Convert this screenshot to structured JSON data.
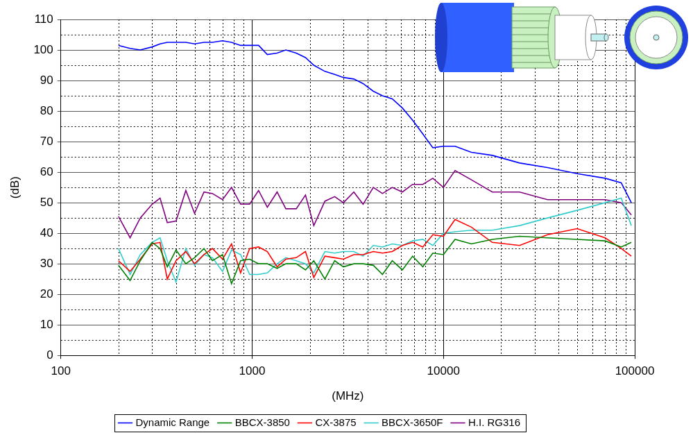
{
  "chart_data": {
    "type": "line",
    "x_label": "(MHz)",
    "y_label": "(dB)",
    "log": "x",
    "grid": true,
    "legend": "bottom",
    "xlim": [
      100,
      100000
    ],
    "xticks": [
      100,
      1000,
      10000,
      100000
    ],
    "ylim": [
      0,
      110
    ],
    "yticks": [
      0,
      10,
      20,
      30,
      40,
      50,
      60,
      70,
      80,
      90,
      100,
      110
    ],
    "x": [
      200,
      230,
      260,
      300,
      330,
      360,
      400,
      450,
      500,
      560,
      620,
      700,
      780,
      870,
      970,
      1080,
      1200,
      1350,
      1500,
      1700,
      1900,
      2100,
      2400,
      2700,
      3000,
      3400,
      3800,
      4300,
      4800,
      5400,
      6100,
      6900,
      7800,
      8800,
      10000,
      11500,
      14000,
      18000,
      25000,
      35000,
      50000,
      70000,
      85000,
      96000
    ],
    "series": [
      {
        "name": "Dynamic Range",
        "color": "#0000ff",
        "values": [
          101.5,
          100.5,
          100,
          101,
          102,
          102.5,
          102.5,
          102.5,
          102,
          102.5,
          102.5,
          103,
          102.5,
          101.5,
          101.5,
          101.5,
          98.5,
          99,
          100,
          99,
          97.5,
          95,
          93,
          92,
          91,
          90.5,
          89,
          86.5,
          85,
          84,
          81,
          77,
          72.5,
          68,
          68.5,
          68.5,
          66.5,
          65.5,
          63,
          61.5,
          59.5,
          58,
          56.5,
          50
        ]
      },
      {
        "name": "BBCX-3850",
        "color": "#008000",
        "values": [
          29.5,
          24.5,
          31,
          37,
          35,
          29,
          34.5,
          30,
          32,
          35,
          31,
          33,
          23.5,
          31,
          31.5,
          30,
          30,
          28.5,
          30,
          30,
          28,
          31,
          25,
          31,
          29,
          30,
          30,
          29.5,
          26.5,
          31,
          28,
          32.5,
          29,
          33.5,
          33,
          38,
          36.5,
          38,
          39,
          38.5,
          38,
          37.5,
          35.5,
          37
        ]
      },
      {
        "name": "CX-3875",
        "color": "#ff0000",
        "values": [
          31,
          27.5,
          31.5,
          36.5,
          37,
          25,
          31,
          34,
          30,
          33,
          35,
          31.5,
          36.5,
          27,
          35,
          35.5,
          34,
          29,
          31.5,
          32,
          34,
          25.5,
          32.5,
          32,
          31.5,
          33,
          33,
          34,
          33.5,
          34,
          36,
          37,
          35.5,
          39.5,
          39,
          44.5,
          42,
          37,
          36,
          39.5,
          41.5,
          38.5,
          35,
          32.5
        ]
      },
      {
        "name": "BBCX-3650F",
        "color": "#33cccc",
        "values": [
          35,
          26.5,
          33,
          37,
          38.5,
          31,
          24,
          35,
          29.5,
          33,
          32,
          27.5,
          34.5,
          33,
          26.5,
          26.5,
          27,
          30,
          32,
          31,
          30,
          27,
          34,
          33.5,
          34,
          34,
          32.5,
          36,
          35.5,
          36.5,
          36,
          37.5,
          38,
          36,
          40,
          40.5,
          41,
          41,
          42.5,
          45,
          47.5,
          50,
          51.5,
          42.5
        ]
      },
      {
        "name": "H.I. RG316",
        "color": "#800080",
        "values": [
          45.5,
          38.5,
          45,
          49.5,
          51.5,
          43.5,
          44,
          54,
          46.5,
          53.5,
          53,
          51,
          55,
          49.5,
          49.5,
          54,
          48.5,
          53.5,
          48,
          48,
          52.5,
          42.5,
          50.5,
          52,
          50,
          53.5,
          49.5,
          55,
          53,
          55,
          53.5,
          56,
          56,
          58,
          55,
          60.5,
          57.5,
          53.5,
          53.5,
          51,
          51,
          51,
          50,
          46
        ]
      }
    ]
  }
}
